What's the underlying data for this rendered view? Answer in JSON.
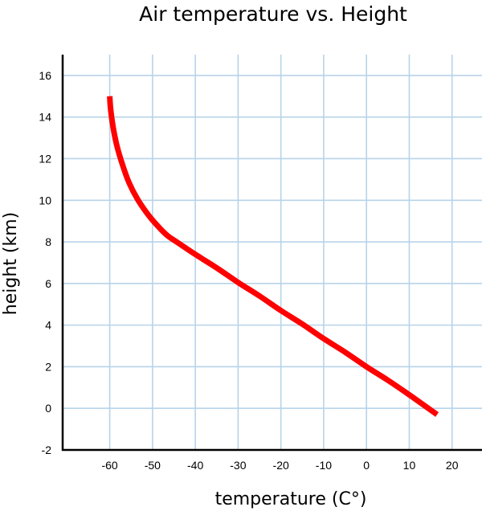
{
  "chart_data": {
    "type": "line",
    "title": "Air temperature vs. Height",
    "xlabel": "temperature (C°)",
    "ylabel": "height (km)",
    "xlim": [
      -71,
      27
    ],
    "ylim": [
      -2,
      17
    ],
    "xticks": [
      -60,
      -50,
      -40,
      -30,
      -20,
      -10,
      0,
      10,
      20
    ],
    "yticks": [
      -2,
      0,
      2,
      4,
      6,
      8,
      10,
      12,
      14,
      16
    ],
    "grid": true,
    "series": [
      {
        "color": "#ff0000",
        "x": [
          16.5,
          10,
          5,
          0,
          -5,
          -10,
          -15,
          -20,
          -25,
          -30,
          -35,
          -40,
          -44,
          -46.5,
          -48.5,
          -51,
          -53.5,
          -55.5,
          -57,
          -58.3,
          -59.2,
          -59.8,
          -60
        ],
        "y": [
          -0.3,
          0.65,
          1.35,
          2.0,
          2.7,
          3.35,
          4.05,
          4.7,
          5.4,
          6.05,
          6.75,
          7.4,
          7.95,
          8.3,
          8.7,
          9.3,
          10.05,
          10.85,
          11.7,
          12.6,
          13.5,
          14.4,
          15.0
        ]
      }
    ]
  }
}
